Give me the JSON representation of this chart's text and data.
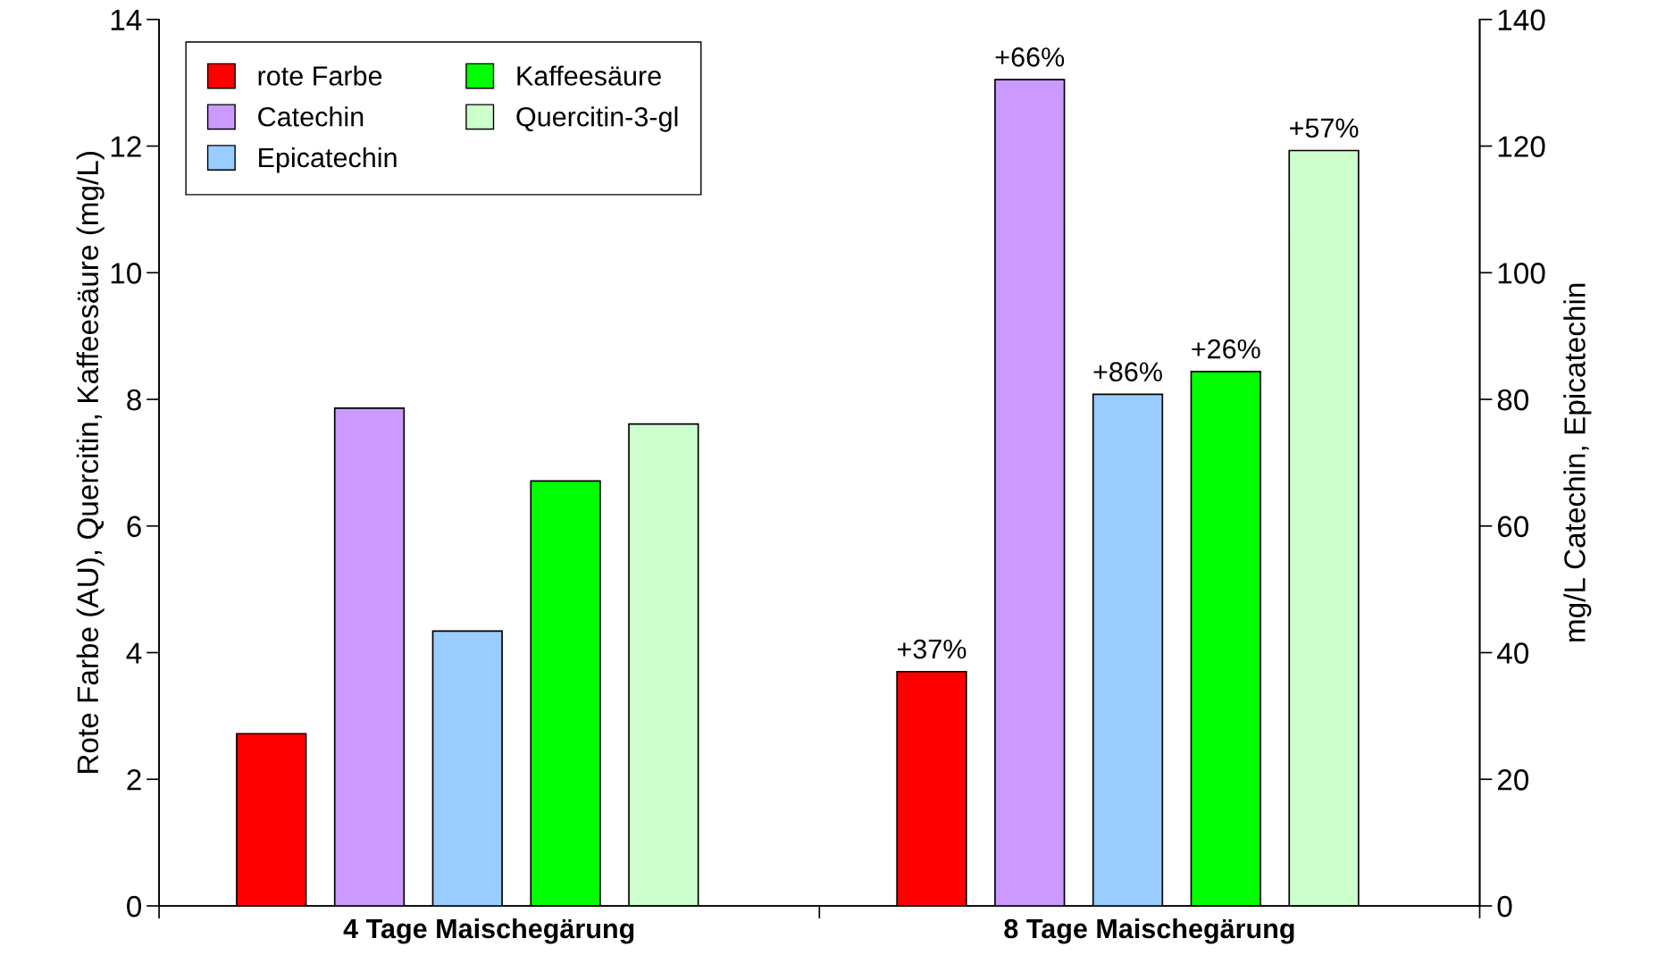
{
  "chart_data": {
    "type": "bar",
    "categories": [
      "4 Tage Maischegärung",
      "8 Tage Maischegärung"
    ],
    "ylabel": "Rote Farbe (AU), Quercitin, Kaffeesäure (mg/L)",
    "y2label": "mg/L Catechin, Epicatechin",
    "ylim": [
      0,
      14
    ],
    "yticks": [
      0,
      2,
      4,
      6,
      8,
      10,
      12,
      14
    ],
    "y2lim": [
      0,
      140
    ],
    "y2ticks": [
      0,
      20,
      40,
      60,
      80,
      100,
      120,
      140
    ],
    "grid": false,
    "legend": "top left",
    "annotations": [
      "+37%",
      "+66%",
      "+86%",
      "+26%",
      "+57%"
    ],
    "series": [
      {
        "name": "rote Farbe",
        "color": "#ff0000",
        "axis": "y",
        "values": [
          2.72,
          3.7
        ]
      },
      {
        "name": "Catechin",
        "color": "#cc99ff",
        "axis": "y2",
        "values": [
          78.6,
          130.5
        ]
      },
      {
        "name": "Epicatechin",
        "color": "#99ccff",
        "axis": "y2",
        "values": [
          43.4,
          80.8
        ]
      },
      {
        "name": "Kaffeesäure",
        "color": "#00ff00",
        "axis": "y",
        "values": [
          6.71,
          8.44
        ]
      },
      {
        "name": "Quercitin-3-gl",
        "color": "#ccffcc",
        "axis": "y",
        "values": [
          7.61,
          11.93
        ]
      }
    ]
  }
}
